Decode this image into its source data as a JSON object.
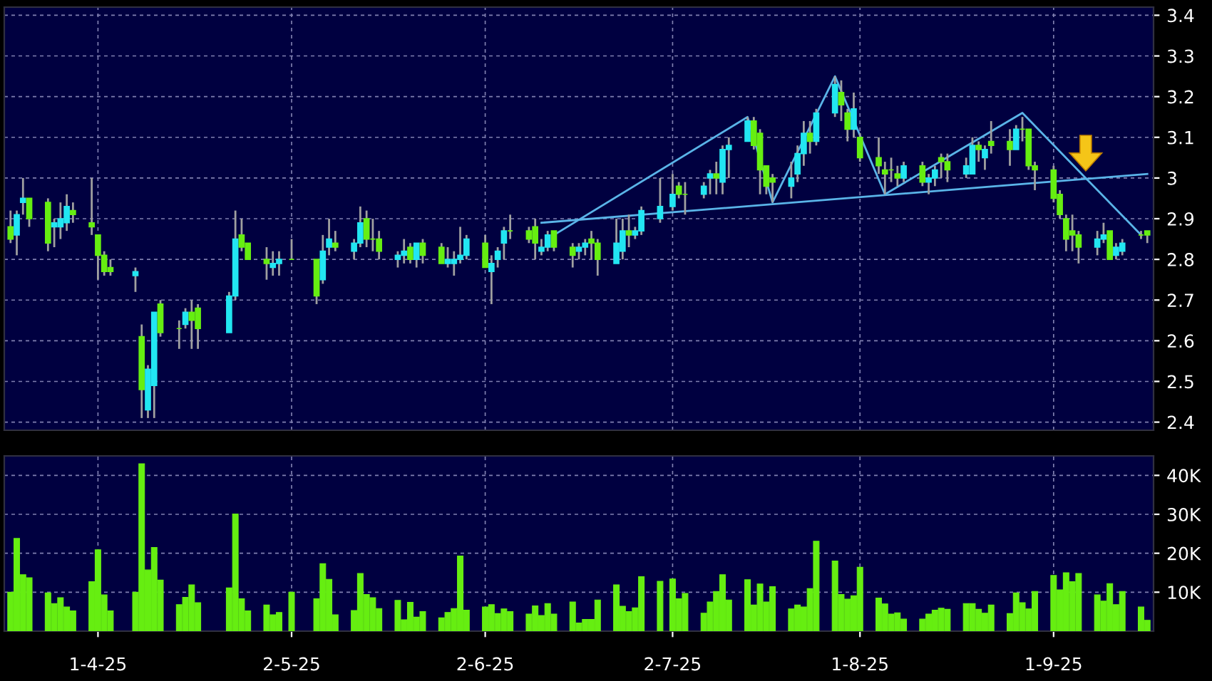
{
  "chart_data": [
    {
      "type": "candlestick",
      "x": [
        "2025-03-18",
        "2025-03-19",
        "2025-03-20",
        "2025-03-21",
        "2025-03-24",
        "2025-03-25",
        "2025-03-26",
        "2025-03-27",
        "2025-03-28",
        "2025-03-31",
        "2025-04-01",
        "2025-04-02",
        "2025-04-03",
        "2025-04-07",
        "2025-04-08",
        "2025-04-09",
        "2025-04-10",
        "2025-04-11",
        "2025-04-14",
        "2025-04-15",
        "2025-04-16",
        "2025-04-17",
        "2025-04-22",
        "2025-04-23",
        "2025-04-24",
        "2025-04-25",
        "2025-04-28",
        "2025-04-29",
        "2025-04-30",
        "2025-05-02",
        "2025-05-06",
        "2025-05-07",
        "2025-05-08",
        "2025-05-09",
        "2025-05-12",
        "2025-05-13",
        "2025-05-14",
        "2025-05-15",
        "2025-05-16",
        "2025-05-19",
        "2025-05-20",
        "2025-05-21",
        "2025-05-22",
        "2025-05-23",
        "2025-05-26",
        "2025-05-27",
        "2025-05-28",
        "2025-05-29",
        "2025-05-30",
        "2025-06-02",
        "2025-06-03",
        "2025-06-04",
        "2025-06-05",
        "2025-06-06",
        "2025-06-09",
        "2025-06-10",
        "2025-06-11",
        "2025-06-12",
        "2025-06-13",
        "2025-06-16",
        "2025-06-17",
        "2025-06-18",
        "2025-06-19",
        "2025-06-20",
        "2025-06-23",
        "2025-06-24",
        "2025-06-25",
        "2025-06-26",
        "2025-06-27",
        "2025-06-30",
        "2025-07-02",
        "2025-07-03",
        "2025-07-04",
        "2025-07-07",
        "2025-07-08",
        "2025-07-09",
        "2025-07-10",
        "2025-07-11",
        "2025-07-14",
        "2025-07-15",
        "2025-07-16",
        "2025-07-17",
        "2025-07-18",
        "2025-07-21",
        "2025-07-22",
        "2025-07-23",
        "2025-07-24",
        "2025-07-25",
        "2025-07-28",
        "2025-07-29",
        "2025-07-30",
        "2025-07-31",
        "2025-08-01",
        "2025-08-04",
        "2025-08-05",
        "2025-08-06",
        "2025-08-07",
        "2025-08-08",
        "2025-08-11",
        "2025-08-12",
        "2025-08-13",
        "2025-08-14",
        "2025-08-15",
        "2025-08-18",
        "2025-08-19",
        "2025-08-20",
        "2025-08-21",
        "2025-08-22",
        "2025-08-25",
        "2025-08-26",
        "2025-08-27",
        "2025-08-28",
        "2025-08-29",
        "2025-09-01",
        "2025-09-02",
        "2025-09-03",
        "2025-09-04",
        "2025-09-05",
        "2025-09-08",
        "2025-09-09",
        "2025-09-10",
        "2025-09-11",
        "2025-09-12",
        "2025-09-15",
        "2025-09-16"
      ],
      "ohlc": [
        [
          2.88,
          2.92,
          2.84,
          2.85
        ],
        [
          2.86,
          2.92,
          2.81,
          2.91
        ],
        [
          2.94,
          3.0,
          2.91,
          2.95
        ],
        [
          2.95,
          2.95,
          2.88,
          2.9
        ],
        [
          2.94,
          2.95,
          2.82,
          2.84
        ],
        [
          2.88,
          2.9,
          2.83,
          2.89
        ],
        [
          2.88,
          2.94,
          2.85,
          2.9
        ],
        [
          2.89,
          2.96,
          2.87,
          2.93
        ],
        [
          2.92,
          2.94,
          2.89,
          2.91
        ],
        [
          2.89,
          3.0,
          2.86,
          2.88
        ],
        [
          2.86,
          2.86,
          2.75,
          2.81
        ],
        [
          2.81,
          2.82,
          2.76,
          2.77
        ],
        [
          2.78,
          2.8,
          2.76,
          2.77
        ],
        [
          2.76,
          2.78,
          2.72,
          2.77
        ],
        [
          2.61,
          2.64,
          2.41,
          2.48
        ],
        [
          2.43,
          2.54,
          2.41,
          2.53
        ],
        [
          2.49,
          2.67,
          2.41,
          2.67
        ],
        [
          2.69,
          2.7,
          2.61,
          2.62
        ],
        [
          2.63,
          2.65,
          2.58,
          2.63
        ],
        [
          2.64,
          2.68,
          2.63,
          2.67
        ],
        [
          2.67,
          2.7,
          2.58,
          2.65
        ],
        [
          2.68,
          2.69,
          2.58,
          2.63
        ],
        [
          2.62,
          2.72,
          2.62,
          2.71
        ],
        [
          2.71,
          2.92,
          2.7,
          2.85
        ],
        [
          2.86,
          2.9,
          2.82,
          2.83
        ],
        [
          2.84,
          2.84,
          2.8,
          2.8
        ],
        [
          2.8,
          2.83,
          2.75,
          2.79
        ],
        [
          2.78,
          2.82,
          2.76,
          2.79
        ],
        [
          2.79,
          2.82,
          2.76,
          2.8
        ],
        [
          2.8,
          2.85,
          2.8,
          2.8
        ],
        [
          2.8,
          2.8,
          2.69,
          2.71
        ],
        [
          2.75,
          2.86,
          2.74,
          2.82
        ],
        [
          2.83,
          2.9,
          2.81,
          2.85
        ],
        [
          2.84,
          2.87,
          2.82,
          2.83
        ],
        [
          2.82,
          2.85,
          2.8,
          2.84
        ],
        [
          2.84,
          2.93,
          2.83,
          2.89
        ],
        [
          2.9,
          2.92,
          2.83,
          2.85
        ],
        [
          2.85,
          2.9,
          2.82,
          2.85
        ],
        [
          2.85,
          2.87,
          2.8,
          2.82
        ],
        [
          2.8,
          2.82,
          2.78,
          2.81
        ],
        [
          2.81,
          2.85,
          2.79,
          2.82
        ],
        [
          2.83,
          2.84,
          2.79,
          2.8
        ],
        [
          2.8,
          2.84,
          2.78,
          2.84
        ],
        [
          2.84,
          2.85,
          2.79,
          2.81
        ],
        [
          2.83,
          2.84,
          2.79,
          2.79
        ],
        [
          2.79,
          2.83,
          2.78,
          2.8
        ],
        [
          2.79,
          2.82,
          2.76,
          2.8
        ],
        [
          2.8,
          2.88,
          2.79,
          2.81
        ],
        [
          2.81,
          2.86,
          2.8,
          2.85
        ],
        [
          2.84,
          2.86,
          2.78,
          2.78
        ],
        [
          2.77,
          2.81,
          2.69,
          2.79
        ],
        [
          2.8,
          2.83,
          2.78,
          2.82
        ],
        [
          2.84,
          2.88,
          2.8,
          2.87
        ],
        [
          2.87,
          2.91,
          2.85,
          2.87
        ],
        [
          2.87,
          2.88,
          2.84,
          2.85
        ],
        [
          2.88,
          2.9,
          2.8,
          2.84
        ],
        [
          2.82,
          2.85,
          2.81,
          2.83
        ],
        [
          2.83,
          2.87,
          2.82,
          2.86
        ],
        [
          2.87,
          2.87,
          2.82,
          2.83
        ],
        [
          2.83,
          2.84,
          2.78,
          2.81
        ],
        [
          2.82,
          2.84,
          2.8,
          2.83
        ],
        [
          2.83,
          2.85,
          2.81,
          2.84
        ],
        [
          2.85,
          2.87,
          2.8,
          2.84
        ],
        [
          2.84,
          2.85,
          2.76,
          2.8
        ],
        [
          2.79,
          2.9,
          2.79,
          2.84
        ],
        [
          2.82,
          2.9,
          2.8,
          2.87
        ],
        [
          2.87,
          2.91,
          2.83,
          2.86
        ],
        [
          2.86,
          2.88,
          2.85,
          2.87
        ],
        [
          2.87,
          2.93,
          2.86,
          2.92
        ],
        [
          2.9,
          3.0,
          2.89,
          2.93
        ],
        [
          2.93,
          3.01,
          2.92,
          2.96
        ],
        [
          2.98,
          2.99,
          2.95,
          2.96
        ],
        [
          2.96,
          2.99,
          2.91,
          2.96
        ],
        [
          2.96,
          2.99,
          2.95,
          2.98
        ],
        [
          3.0,
          3.02,
          2.96,
          3.01
        ],
        [
          3.01,
          3.04,
          2.96,
          3.0
        ],
        [
          2.99,
          3.08,
          2.96,
          3.07
        ],
        [
          3.07,
          3.1,
          3.0,
          3.08
        ],
        [
          3.09,
          3.15,
          3.09,
          3.14
        ],
        [
          3.14,
          3.15,
          3.07,
          3.08
        ],
        [
          3.11,
          3.12,
          2.96,
          3.02
        ],
        [
          3.03,
          3.03,
          2.96,
          2.98
        ],
        [
          3.0,
          3.01,
          2.94,
          2.99
        ],
        [
          2.98,
          3.04,
          2.95,
          3.0
        ],
        [
          3.01,
          3.08,
          2.99,
          3.06
        ],
        [
          3.06,
          3.14,
          3.03,
          3.11
        ],
        [
          3.11,
          3.14,
          3.06,
          3.09
        ],
        [
          3.09,
          3.17,
          3.08,
          3.16
        ],
        [
          3.16,
          3.25,
          3.15,
          3.23
        ],
        [
          3.21,
          3.24,
          3.14,
          3.18
        ],
        [
          3.16,
          3.17,
          3.09,
          3.12
        ],
        [
          3.12,
          3.21,
          3.1,
          3.17
        ],
        [
          3.1,
          3.11,
          3.04,
          3.05
        ],
        [
          3.05,
          3.1,
          3.01,
          3.03
        ],
        [
          3.02,
          3.04,
          2.96,
          3.01
        ],
        [
          3.02,
          3.05,
          2.99,
          3.02
        ],
        [
          3.01,
          3.03,
          2.98,
          3.0
        ],
        [
          3.0,
          3.04,
          2.99,
          3.03
        ],
        [
          3.03,
          3.04,
          2.98,
          2.99
        ],
        [
          2.99,
          3.01,
          2.96,
          3.0
        ],
        [
          3.0,
          3.03,
          2.98,
          3.02
        ],
        [
          3.05,
          3.06,
          3.0,
          3.04
        ],
        [
          3.04,
          3.06,
          2.99,
          3.02
        ],
        [
          3.01,
          3.05,
          3.0,
          3.03
        ],
        [
          3.01,
          3.1,
          3.01,
          3.08
        ],
        [
          3.08,
          3.09,
          3.04,
          3.07
        ],
        [
          3.05,
          3.08,
          3.02,
          3.07
        ],
        [
          3.09,
          3.14,
          3.06,
          3.08
        ],
        [
          3.09,
          3.12,
          3.03,
          3.07
        ],
        [
          3.07,
          3.13,
          3.07,
          3.12
        ],
        [
          3.12,
          3.15,
          3.09,
          3.12
        ],
        [
          3.12,
          3.12,
          3.02,
          3.03
        ],
        [
          3.03,
          3.04,
          2.97,
          3.02
        ],
        [
          3.02,
          3.03,
          2.94,
          2.95
        ],
        [
          2.96,
          2.97,
          2.9,
          2.91
        ],
        [
          2.9,
          2.91,
          2.82,
          2.85
        ],
        [
          2.87,
          2.91,
          2.82,
          2.86
        ],
        [
          2.86,
          2.87,
          2.79,
          2.83
        ],
        [
          2.83,
          2.87,
          2.81,
          2.85
        ],
        [
          2.85,
          2.89,
          2.84,
          2.86
        ],
        [
          2.87,
          2.87,
          2.8,
          2.8
        ],
        [
          2.81,
          2.84,
          2.8,
          2.83
        ],
        [
          2.82,
          2.85,
          2.81,
          2.84
        ],
        [
          2.86,
          2.87,
          2.85,
          2.86
        ],
        [
          2.87,
          2.87,
          2.84,
          2.86
        ]
      ],
      "colors": [
        "#66ee11",
        "#22e6f2",
        "#22e6f2",
        "#66ee11",
        "#66ee11",
        "#22e6f2",
        "#22e6f2",
        "#22e6f2",
        "#66ee11",
        "#66ee11",
        "#66ee11",
        "#66ee11",
        "#66ee11",
        "#22e6f2",
        "#66ee11",
        "#22e6f2",
        "#22e6f2",
        "#66ee11",
        "#66ee11",
        "#22e6f2",
        "#66ee11",
        "#66ee11",
        "#22e6f2",
        "#22e6f2",
        "#66ee11",
        "#66ee11",
        "#66ee11",
        "#22e6f2",
        "#22e6f2",
        "#66ee11",
        "#66ee11",
        "#22e6f2",
        "#22e6f2",
        "#66ee11",
        "#22e6f2",
        "#22e6f2",
        "#66ee11",
        "#66ee11",
        "#66ee11",
        "#22e6f2",
        "#22e6f2",
        "#66ee11",
        "#22e6f2",
        "#66ee11",
        "#66ee11",
        "#22e6f2",
        "#22e6f2",
        "#22e6f2",
        "#22e6f2",
        "#66ee11",
        "#22e6f2",
        "#22e6f2",
        "#22e6f2",
        "#66ee11",
        "#66ee11",
        "#66ee11",
        "#22e6f2",
        "#22e6f2",
        "#66ee11",
        "#66ee11",
        "#22e6f2",
        "#22e6f2",
        "#66ee11",
        "#66ee11",
        "#22e6f2",
        "#22e6f2",
        "#66ee11",
        "#22e6f2",
        "#22e6f2",
        "#22e6f2",
        "#22e6f2",
        "#66ee11",
        "#66ee11",
        "#22e6f2",
        "#22e6f2",
        "#66ee11",
        "#22e6f2",
        "#22e6f2",
        "#22e6f2",
        "#66ee11",
        "#66ee11",
        "#66ee11",
        "#66ee11",
        "#22e6f2",
        "#22e6f2",
        "#22e6f2",
        "#66ee11",
        "#22e6f2",
        "#22e6f2",
        "#66ee11",
        "#66ee11",
        "#22e6f2",
        "#66ee11",
        "#66ee11",
        "#66ee11",
        "#66ee11",
        "#66ee11",
        "#22e6f2",
        "#66ee11",
        "#22e6f2",
        "#22e6f2",
        "#66ee11",
        "#66ee11",
        "#22e6f2",
        "#22e6f2",
        "#66ee11",
        "#22e6f2",
        "#66ee11",
        "#66ee11",
        "#22e6f2",
        "#66ee11",
        "#66ee11",
        "#66ee11",
        "#66ee11",
        "#66ee11",
        "#66ee11",
        "#66ee11",
        "#66ee11",
        "#22e6f2",
        "#22e6f2",
        "#66ee11",
        "#22e6f2",
        "#22e6f2",
        "#66ee11",
        "#66ee11"
      ],
      "series": [
        {
          "type": "line",
          "color": "#5ab4e8",
          "x": [
            "2025-06-13",
            "2025-07-14",
            "2025-07-18",
            "2025-07-28",
            "2025-08-05",
            "2025-08-27",
            "2025-09-15"
          ],
          "values": [
            2.86,
            3.15,
            2.94,
            3.25,
            2.96,
            3.16,
            2.86
          ]
        },
        {
          "type": "line",
          "color": "#5ab4e8",
          "x": [
            "2025-06-11",
            "2025-09-16"
          ],
          "values": [
            2.89,
            3.01
          ]
        }
      ],
      "xlim": [
        "2025-03-17",
        "2025-09-17"
      ],
      "xticks": [
        {
          "value": "2025-04-01",
          "label": null
        },
        {
          "value": "2025-05-02",
          "label": null
        },
        {
          "value": "2025-06-02",
          "label": null
        },
        {
          "value": "2025-07-02",
          "label": null
        },
        {
          "value": "2025-08-01",
          "label": null
        },
        {
          "value": "2025-09-01",
          "label": null
        }
      ],
      "ylim": [
        2.38,
        3.42
      ],
      "yticks": [
        2.4,
        2.5,
        2.6,
        2.7,
        2.8,
        2.9,
        3,
        3.1,
        3.2,
        3.3,
        3.4
      ],
      "tick_labels": "y",
      "grid": true
    },
    {
      "type": "bar",
      "x": [
        "2025-03-18",
        "2025-03-19",
        "2025-03-20",
        "2025-03-21",
        "2025-03-24",
        "2025-03-25",
        "2025-03-26",
        "2025-03-27",
        "2025-03-28",
        "2025-03-31",
        "2025-04-01",
        "2025-04-02",
        "2025-04-03",
        "2025-04-07",
        "2025-04-08",
        "2025-04-09",
        "2025-04-10",
        "2025-04-11",
        "2025-04-14",
        "2025-04-15",
        "2025-04-16",
        "2025-04-17",
        "2025-04-22",
        "2025-04-23",
        "2025-04-24",
        "2025-04-25",
        "2025-04-28",
        "2025-04-29",
        "2025-04-30",
        "2025-05-02",
        "2025-05-06",
        "2025-05-07",
        "2025-05-08",
        "2025-05-09",
        "2025-05-12",
        "2025-05-13",
        "2025-05-14",
        "2025-05-15",
        "2025-05-16",
        "2025-05-19",
        "2025-05-20",
        "2025-05-21",
        "2025-05-22",
        "2025-05-23",
        "2025-05-26",
        "2025-05-27",
        "2025-05-28",
        "2025-05-29",
        "2025-05-30",
        "2025-06-02",
        "2025-06-03",
        "2025-06-04",
        "2025-06-05",
        "2025-06-06",
        "2025-06-09",
        "2025-06-10",
        "2025-06-11",
        "2025-06-12",
        "2025-06-13",
        "2025-06-16",
        "2025-06-17",
        "2025-06-18",
        "2025-06-19",
        "2025-06-20",
        "2025-06-23",
        "2025-06-24",
        "2025-06-25",
        "2025-06-26",
        "2025-06-27",
        "2025-06-30",
        "2025-07-02",
        "2025-07-03",
        "2025-07-04",
        "2025-07-07",
        "2025-07-08",
        "2025-07-09",
        "2025-07-10",
        "2025-07-11",
        "2025-07-14",
        "2025-07-15",
        "2025-07-16",
        "2025-07-17",
        "2025-07-18",
        "2025-07-21",
        "2025-07-22",
        "2025-07-23",
        "2025-07-24",
        "2025-07-25",
        "2025-07-28",
        "2025-07-29",
        "2025-07-30",
        "2025-07-31",
        "2025-08-01",
        "2025-08-04",
        "2025-08-05",
        "2025-08-06",
        "2025-08-07",
        "2025-08-08",
        "2025-08-11",
        "2025-08-12",
        "2025-08-13",
        "2025-08-14",
        "2025-08-15",
        "2025-08-18",
        "2025-08-19",
        "2025-08-20",
        "2025-08-21",
        "2025-08-22",
        "2025-08-25",
        "2025-08-26",
        "2025-08-27",
        "2025-08-28",
        "2025-08-29",
        "2025-09-01",
        "2025-09-02",
        "2025-09-03",
        "2025-09-04",
        "2025-09-05",
        "2025-09-08",
        "2025-09-09",
        "2025-09-10",
        "2025-09-11",
        "2025-09-12",
        "2025-09-15",
        "2025-09-16"
      ],
      "values": [
        10000,
        23800,
        14500,
        13700,
        9800,
        7100,
        8600,
        6200,
        5200,
        12700,
        20900,
        9300,
        5200,
        10000,
        43000,
        15700,
        21500,
        13100,
        6800,
        8700,
        11900,
        7300,
        11100,
        30100,
        8300,
        5200,
        6700,
        4200,
        4800,
        10000,
        8300,
        17300,
        13300,
        4200,
        5300,
        14800,
        9400,
        8600,
        5800,
        7900,
        2900,
        7400,
        3600,
        5000,
        3400,
        4800,
        5800,
        19300,
        5400,
        6200,
        6800,
        4500,
        5700,
        5000,
        4400,
        6500,
        4000,
        7100,
        4400,
        7500,
        2100,
        3000,
        3000,
        8000,
        11900,
        6400,
        5000,
        6000,
        14000,
        12800,
        13400,
        8300,
        9700,
        4600,
        7500,
        10200,
        14500,
        8000,
        13200,
        6700,
        12100,
        7500,
        11400,
        5700,
        6700,
        6200,
        10900,
        23100,
        18000,
        9400,
        8200,
        9100,
        16400,
        8500,
        7000,
        4400,
        4700,
        3100,
        3100,
        4400,
        5400,
        5900,
        5600,
        7100,
        7100,
        5600,
        4600,
        6700,
        4500,
        9800,
        7300,
        5700,
        10200,
        14300,
        10600,
        15000,
        12700,
        14800,
        9300,
        7700,
        12200,
        6800,
        10200,
        6200,
        2800
      ],
      "color": "#66ee11",
      "xlim": [
        "2025-03-17",
        "2025-09-17"
      ],
      "xticks": [
        {
          "value": "2025-04-01",
          "label": "1-4-25"
        },
        {
          "value": "2025-05-02",
          "label": "2-5-25"
        },
        {
          "value": "2025-06-02",
          "label": "2-6-25"
        },
        {
          "value": "2025-07-02",
          "label": "2-7-25"
        },
        {
          "value": "2025-08-01",
          "label": "1-8-25"
        },
        {
          "value": "2025-09-01",
          "label": "1-9-25"
        }
      ],
      "ylim": [
        0,
        45000
      ],
      "yticks": [
        {
          "value": 10000,
          "label": "10K"
        },
        {
          "value": 20000,
          "label": "20K"
        },
        {
          "value": 30000,
          "label": "30K"
        },
        {
          "value": 40000,
          "label": "40K"
        }
      ],
      "grid": true
    }
  ]
}
